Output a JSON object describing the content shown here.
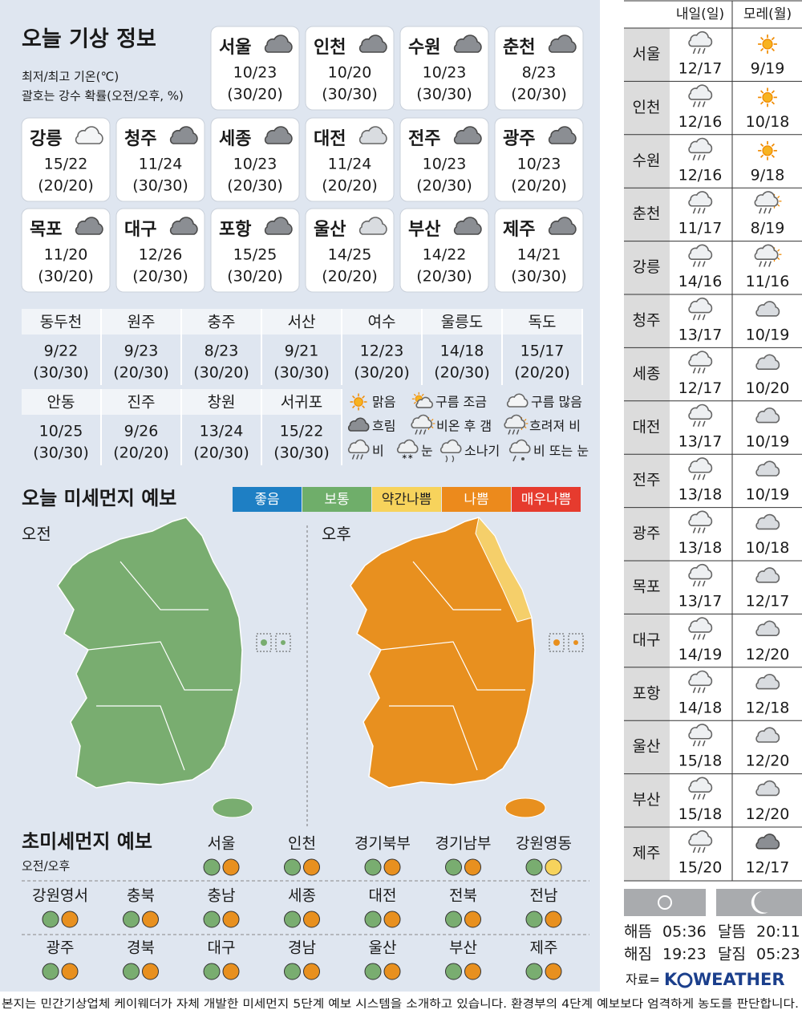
{
  "header": {
    "title": "오늘 기상 정보",
    "notes": [
      "최저/최고 기온(℃)",
      "괄호는 강수 확률(오전/오후, %)"
    ]
  },
  "cities": [
    {
      "name": "서울",
      "temp": "10/23",
      "pop": "(30/20)"
    },
    {
      "name": "인천",
      "temp": "10/20",
      "pop": "(30/30)"
    },
    {
      "name": "수원",
      "temp": "10/23",
      "pop": "(30/30)"
    },
    {
      "name": "춘천",
      "temp": "8/23",
      "pop": "(20/30)"
    },
    {
      "name": "강릉",
      "temp": "15/22",
      "pop": "(20/20)"
    },
    {
      "name": "청주",
      "temp": "11/24",
      "pop": "(30/30)"
    },
    {
      "name": "세종",
      "temp": "10/23",
      "pop": "(20/30)"
    },
    {
      "name": "대전",
      "temp": "11/24",
      "pop": "(20/20)"
    },
    {
      "name": "전주",
      "temp": "10/23",
      "pop": "(20/30)"
    },
    {
      "name": "광주",
      "temp": "10/23",
      "pop": "(20/20)"
    },
    {
      "name": "목포",
      "temp": "11/20",
      "pop": "(30/20)"
    },
    {
      "name": "대구",
      "temp": "12/26",
      "pop": "(20/30)"
    },
    {
      "name": "포항",
      "temp": "15/25",
      "pop": "(30/20)"
    },
    {
      "name": "울산",
      "temp": "14/25",
      "pop": "(20/20)"
    },
    {
      "name": "부산",
      "temp": "14/22",
      "pop": "(20/30)"
    },
    {
      "name": "제주",
      "temp": "14/21",
      "pop": "(30/30)"
    }
  ],
  "towns": [
    {
      "name": "동두천",
      "temp": "9/22",
      "pop": "(30/30)"
    },
    {
      "name": "원주",
      "temp": "9/23",
      "pop": "(20/30)"
    },
    {
      "name": "충주",
      "temp": "8/23",
      "pop": "(30/20)"
    },
    {
      "name": "서산",
      "temp": "9/21",
      "pop": "(30/30)"
    },
    {
      "name": "여수",
      "temp": "12/23",
      "pop": "(30/20)"
    },
    {
      "name": "울릉도",
      "temp": "14/18",
      "pop": "(20/30)"
    },
    {
      "name": "독도",
      "temp": "15/17",
      "pop": "(20/20)"
    },
    {
      "name": "안동",
      "temp": "10/25",
      "pop": "(30/30)"
    },
    {
      "name": "진주",
      "temp": "9/26",
      "pop": "(20/20)"
    },
    {
      "name": "창원",
      "temp": "13/24",
      "pop": "(20/30)"
    },
    {
      "name": "서귀포",
      "temp": "15/22",
      "pop": "(30/30)"
    }
  ],
  "legend": [
    "맑음",
    "구름 조금",
    "구름 많음",
    "흐림",
    "비온 후 갬",
    "흐려져 비",
    "비",
    "눈",
    "소나기",
    "비 또는 눈"
  ],
  "dust": {
    "title": "오늘 미세먼지 예보",
    "grades": [
      {
        "name": "좋음",
        "color": "#1e7fc4"
      },
      {
        "name": "보통",
        "color": "#6fae6a"
      },
      {
        "name": "약간나쁨",
        "color": "#f7d35c"
      },
      {
        "name": "나쁨",
        "color": "#ec8a1c"
      },
      {
        "name": "매우나쁨",
        "color": "#e63b2e"
      }
    ],
    "maps": [
      {
        "label": "오전",
        "color": "#79ad70"
      },
      {
        "label": "오후",
        "color": "#e8901f",
        "coast_color": "#f5cf6a"
      }
    ]
  },
  "ultrafine": {
    "title": "초미세먼지 예보",
    "subtitle": "오전/오후",
    "regions": [
      {
        "name": "서울",
        "am": "#79ad70",
        "pm": "#e8901f"
      },
      {
        "name": "인천",
        "am": "#79ad70",
        "pm": "#e8901f"
      },
      {
        "name": "경기북부",
        "am": "#79ad70",
        "pm": "#e8901f"
      },
      {
        "name": "경기남부",
        "am": "#79ad70",
        "pm": "#e8901f"
      },
      {
        "name": "강원영동",
        "am": "#79ad70",
        "pm": "#f7d35c"
      },
      {
        "name": "강원영서",
        "am": "#79ad70",
        "pm": "#e8901f"
      },
      {
        "name": "충북",
        "am": "#79ad70",
        "pm": "#e8901f"
      },
      {
        "name": "충남",
        "am": "#79ad70",
        "pm": "#e8901f"
      },
      {
        "name": "세종",
        "am": "#79ad70",
        "pm": "#e8901f"
      },
      {
        "name": "대전",
        "am": "#79ad70",
        "pm": "#e8901f"
      },
      {
        "name": "전북",
        "am": "#79ad70",
        "pm": "#e8901f"
      },
      {
        "name": "전남",
        "am": "#79ad70",
        "pm": "#e8901f"
      },
      {
        "name": "광주",
        "am": "#79ad70",
        "pm": "#e8901f"
      },
      {
        "name": "경북",
        "am": "#79ad70",
        "pm": "#e8901f"
      },
      {
        "name": "대구",
        "am": "#79ad70",
        "pm": "#e8901f"
      },
      {
        "name": "경남",
        "am": "#79ad70",
        "pm": "#e8901f"
      },
      {
        "name": "울산",
        "am": "#79ad70",
        "pm": "#e8901f"
      },
      {
        "name": "부산",
        "am": "#79ad70",
        "pm": "#e8901f"
      },
      {
        "name": "제주",
        "am": "#79ad70",
        "pm": "#e8901f"
      }
    ]
  },
  "forecast": {
    "columns": [
      "내일(일)",
      "모레(월)"
    ],
    "rows": [
      {
        "name": "서울",
        "day1": "12/17",
        "day2": "9/19"
      },
      {
        "name": "인천",
        "day1": "12/16",
        "day2": "10/18"
      },
      {
        "name": "수원",
        "day1": "12/16",
        "day2": "9/18"
      },
      {
        "name": "춘천",
        "day1": "11/17",
        "day2": "8/19"
      },
      {
        "name": "강릉",
        "day1": "14/16",
        "day2": "11/16"
      },
      {
        "name": "청주",
        "day1": "13/17",
        "day2": "10/19"
      },
      {
        "name": "세종",
        "day1": "12/17",
        "day2": "10/20"
      },
      {
        "name": "대전",
        "day1": "13/17",
        "day2": "10/19"
      },
      {
        "name": "전주",
        "day1": "13/18",
        "day2": "10/19"
      },
      {
        "name": "광주",
        "day1": "13/18",
        "day2": "10/18"
      },
      {
        "name": "목포",
        "day1": "13/17",
        "day2": "12/17"
      },
      {
        "name": "대구",
        "day1": "14/19",
        "day2": "12/20"
      },
      {
        "name": "포항",
        "day1": "14/18",
        "day2": "12/18"
      },
      {
        "name": "울산",
        "day1": "15/18",
        "day2": "12/20"
      },
      {
        "name": "부산",
        "day1": "15/18",
        "day2": "12/20"
      },
      {
        "name": "제주",
        "day1": "15/20",
        "day2": "12/17"
      }
    ]
  },
  "sun_moon": [
    {
      "label": "해뜸",
      "time": "05:36"
    },
    {
      "label": "해짐",
      "time": "19:23"
    },
    {
      "label": "달뜸",
      "time": "20:11"
    },
    {
      "label": "달짐",
      "time": "05:23"
    }
  ],
  "source": {
    "label": "자료=",
    "logo": [
      "K",
      "WEATHER"
    ]
  },
  "footer": "본지는 민간기상업체 케이웨더가 자체 개발한 미세먼지 5단계 예보 시스템을 소개하고 있습니다. 환경부의 4단계 예보보다 엄격하게 농도를 판단합니다."
}
